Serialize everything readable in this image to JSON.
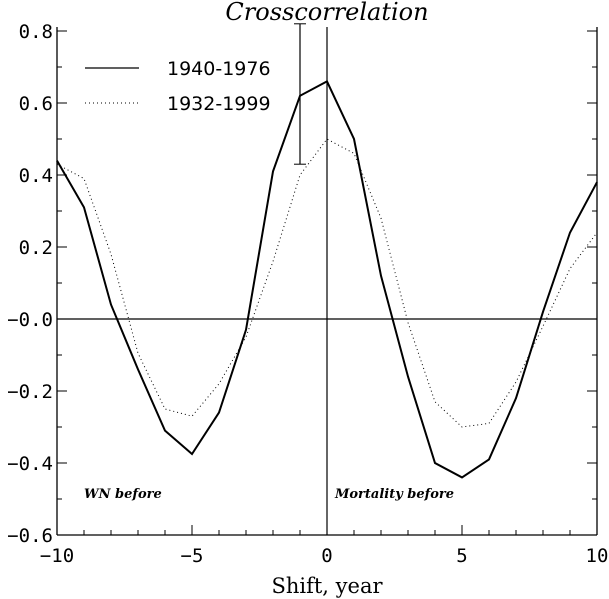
{
  "chart_data": {
    "type": "line",
    "title": "Crosscorrelation",
    "xlabel": "Shift, year",
    "ylabel": "",
    "xlim": [
      -10,
      10
    ],
    "ylim": [
      -0.6,
      0.8
    ],
    "xticks": [
      -10,
      -5,
      0,
      5,
      10
    ],
    "xtick_labels": [
      "−10",
      "−5",
      "0",
      "5",
      "10"
    ],
    "yticks": [
      -0.6,
      -0.4,
      -0.2,
      0.0,
      0.2,
      0.4,
      0.6,
      0.8
    ],
    "ytick_labels": [
      "−0.6",
      "−0.4",
      "−0.2",
      "−0.0",
      "0.2",
      "0.4",
      "0.6",
      "0.8"
    ],
    "grid": false,
    "legend_position": "top-left",
    "x": [
      -10,
      -9,
      -8,
      -7,
      -6,
      -5,
      -4,
      -3,
      -2,
      -1,
      0,
      1,
      2,
      3,
      4,
      5,
      6,
      7,
      8,
      9,
      10
    ],
    "series": [
      {
        "name": "1940-1976",
        "style": "solid",
        "color": "#000000",
        "values": [
          0.44,
          0.31,
          0.04,
          -0.14,
          -0.31,
          -0.375,
          -0.26,
          -0.03,
          0.41,
          0.62,
          0.66,
          0.5,
          0.12,
          -0.16,
          -0.4,
          -0.44,
          -0.39,
          -0.22,
          0.02,
          0.24,
          0.38
        ]
      },
      {
        "name": "1932-1999",
        "style": "dotted",
        "color": "#000000",
        "values": [
          0.43,
          0.39,
          0.18,
          -0.095,
          -0.25,
          -0.27,
          -0.18,
          -0.05,
          0.16,
          0.4,
          0.5,
          0.46,
          0.28,
          -0.01,
          -0.23,
          -0.3,
          -0.29,
          -0.175,
          -0.02,
          0.14,
          0.24
        ]
      }
    ],
    "error_bar": {
      "x": -1,
      "low": 0.43,
      "high": 0.82
    },
    "reference_lines": {
      "x": 0,
      "y": 0
    },
    "annotations": [
      {
        "text": "WN before",
        "x": -9,
        "y": -0.49
      },
      {
        "text": "Mortality before",
        "x": 0.3,
        "y": -0.49
      }
    ]
  }
}
